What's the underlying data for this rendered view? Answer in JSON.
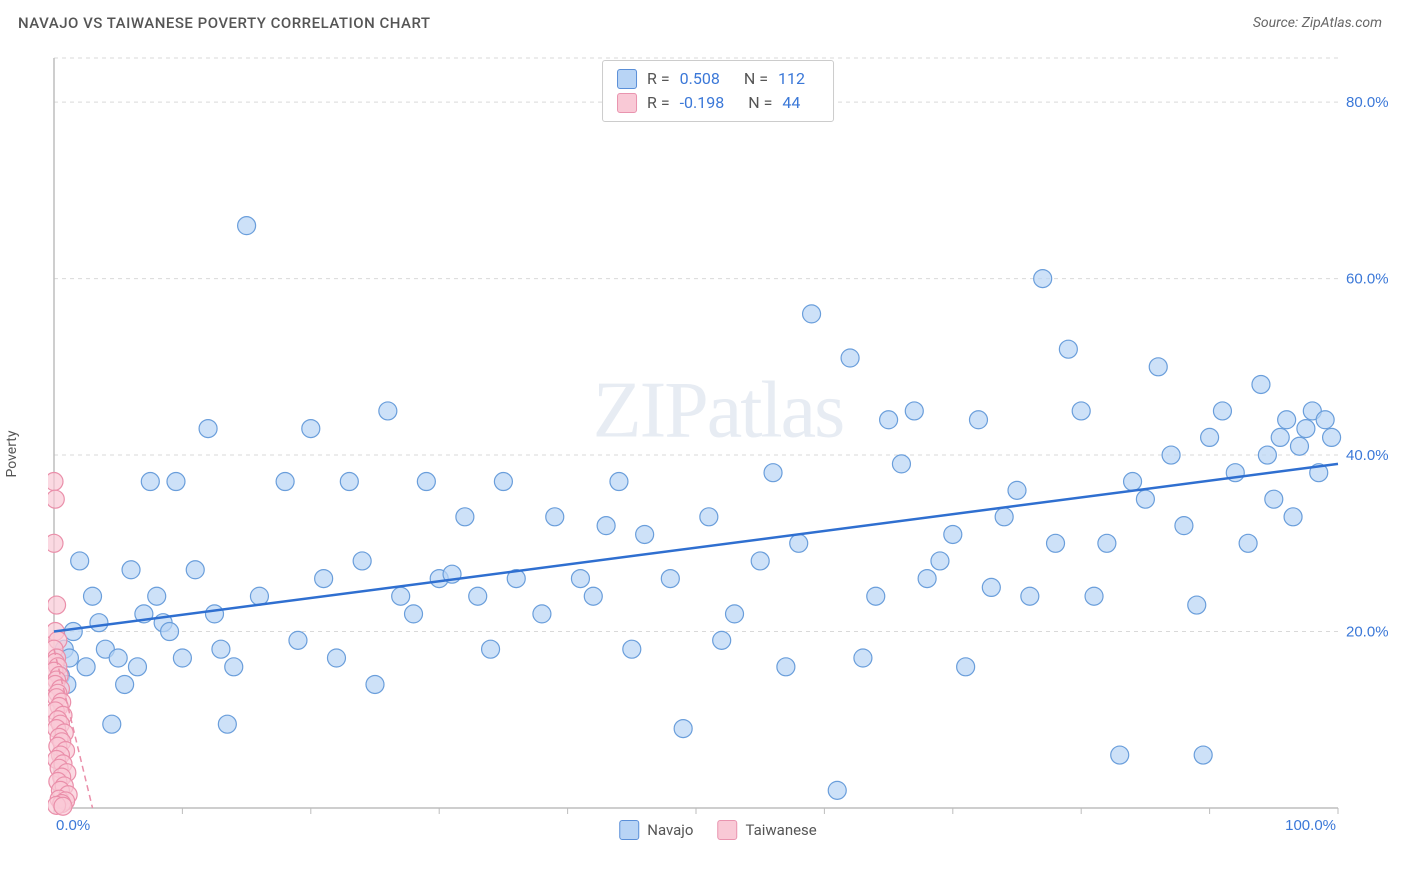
{
  "header": {
    "title": "NAVAJO VS TAIWANESE POVERTY CORRELATION CHART",
    "source": "Source: ZipAtlas.com"
  },
  "ylabel": "Poverty",
  "watermark": "ZIPatlas",
  "chart": {
    "type": "scatter",
    "xlim": [
      0,
      100
    ],
    "ylim": [
      0,
      85
    ],
    "x_ticks": [
      0,
      10,
      20,
      30,
      40,
      50,
      60,
      70,
      80,
      90,
      100
    ],
    "x_tick_labels": {
      "0": "0.0%",
      "100": "100.0%"
    },
    "y_gridlines": [
      20,
      40,
      60,
      80
    ],
    "y_tick_labels": {
      "20": "20.0%",
      "40": "40.0%",
      "60": "60.0%",
      "80": "80.0%"
    },
    "background_color": "#ffffff",
    "grid_color": "#d9d9d9",
    "axis_color": "#bdbdbd",
    "marker_radius": 9,
    "marker_stroke_width": 1.2,
    "series": [
      {
        "name": "Navajo",
        "label": "Navajo",
        "fill": "#b8d4f5",
        "stroke": "#6a9edb",
        "fill_opacity": 0.7,
        "R": "0.508",
        "N": "112",
        "trend": {
          "x1": 0,
          "y1": 20,
          "x2": 100,
          "y2": 39,
          "color": "#2f6fd0",
          "width": 2.5
        },
        "points": [
          [
            0.5,
            15
          ],
          [
            0.8,
            18
          ],
          [
            1,
            14
          ],
          [
            1.2,
            17
          ],
          [
            1.5,
            20
          ],
          [
            2,
            28
          ],
          [
            2.5,
            16
          ],
          [
            3,
            24
          ],
          [
            3.5,
            21
          ],
          [
            4,
            18
          ],
          [
            4.5,
            9.5
          ],
          [
            5,
            17
          ],
          [
            5.5,
            14
          ],
          [
            6,
            27
          ],
          [
            6.5,
            16
          ],
          [
            7,
            22
          ],
          [
            7.5,
            37
          ],
          [
            8,
            24
          ],
          [
            8.5,
            21
          ],
          [
            9,
            20
          ],
          [
            9.5,
            37
          ],
          [
            10,
            17
          ],
          [
            11,
            27
          ],
          [
            12,
            43
          ],
          [
            12.5,
            22
          ],
          [
            13,
            18
          ],
          [
            13.5,
            9.5
          ],
          [
            14,
            16
          ],
          [
            15,
            66
          ],
          [
            16,
            24
          ],
          [
            18,
            37
          ],
          [
            19,
            19
          ],
          [
            20,
            43
          ],
          [
            21,
            26
          ],
          [
            22,
            17
          ],
          [
            23,
            37
          ],
          [
            24,
            28
          ],
          [
            25,
            14
          ],
          [
            26,
            45
          ],
          [
            27,
            24
          ],
          [
            28,
            22
          ],
          [
            29,
            37
          ],
          [
            30,
            26
          ],
          [
            31,
            26.5
          ],
          [
            32,
            33
          ],
          [
            33,
            24
          ],
          [
            34,
            18
          ],
          [
            35,
            37
          ],
          [
            36,
            26
          ],
          [
            38,
            22
          ],
          [
            39,
            33
          ],
          [
            41,
            26
          ],
          [
            42,
            24
          ],
          [
            43,
            32
          ],
          [
            44,
            37
          ],
          [
            45,
            18
          ],
          [
            46,
            31
          ],
          [
            48,
            26
          ],
          [
            49,
            9
          ],
          [
            51,
            33
          ],
          [
            52,
            19
          ],
          [
            53,
            22
          ],
          [
            55,
            28
          ],
          [
            56,
            38
          ],
          [
            57,
            16
          ],
          [
            58,
            30
          ],
          [
            59,
            56
          ],
          [
            61,
            2
          ],
          [
            62,
            51
          ],
          [
            63,
            17
          ],
          [
            64,
            24
          ],
          [
            65,
            44
          ],
          [
            66,
            39
          ],
          [
            67,
            45
          ],
          [
            68,
            26
          ],
          [
            69,
            28
          ],
          [
            70,
            31
          ],
          [
            71,
            16
          ],
          [
            72,
            44
          ],
          [
            73,
            25
          ],
          [
            74,
            33
          ],
          [
            75,
            36
          ],
          [
            76,
            24
          ],
          [
            77,
            60
          ],
          [
            78,
            30
          ],
          [
            79,
            52
          ],
          [
            80,
            45
          ],
          [
            81,
            24
          ],
          [
            82,
            30
          ],
          [
            83,
            6
          ],
          [
            84,
            37
          ],
          [
            85,
            35
          ],
          [
            86,
            50
          ],
          [
            87,
            40
          ],
          [
            88,
            32
          ],
          [
            89,
            23
          ],
          [
            89.5,
            6
          ],
          [
            90,
            42
          ],
          [
            91,
            45
          ],
          [
            92,
            38
          ],
          [
            93,
            30
          ],
          [
            94,
            48
          ],
          [
            94.5,
            40
          ],
          [
            95,
            35
          ],
          [
            95.5,
            42
          ],
          [
            96,
            44
          ],
          [
            96.5,
            33
          ],
          [
            97,
            41
          ],
          [
            97.5,
            43
          ],
          [
            98,
            45
          ],
          [
            98.5,
            38
          ],
          [
            99,
            44
          ],
          [
            99.5,
            42
          ]
        ]
      },
      {
        "name": "Taiwanese",
        "label": "Taiwanese",
        "fill": "#f9c9d6",
        "stroke": "#ea8faa",
        "fill_opacity": 0.7,
        "R": "-0.198",
        "N": "44",
        "trend": {
          "x1": 0,
          "y1": 18,
          "x2": 3,
          "y2": 0,
          "color": "#ea8faa",
          "width": 1.5,
          "dashed": true
        },
        "points": [
          [
            0,
            37
          ],
          [
            0.1,
            35
          ],
          [
            0,
            30
          ],
          [
            0.2,
            23
          ],
          [
            0.1,
            20
          ],
          [
            0.3,
            19
          ],
          [
            0,
            18
          ],
          [
            0.2,
            17
          ],
          [
            0.1,
            16.5
          ],
          [
            0.3,
            16
          ],
          [
            0,
            15.5
          ],
          [
            0.4,
            15
          ],
          [
            0.2,
            14.5
          ],
          [
            0.1,
            14
          ],
          [
            0.5,
            13.5
          ],
          [
            0.3,
            13
          ],
          [
            0.2,
            12.5
          ],
          [
            0.6,
            12
          ],
          [
            0.4,
            11.5
          ],
          [
            0.1,
            11
          ],
          [
            0.7,
            10.5
          ],
          [
            0.3,
            10
          ],
          [
            0.5,
            9.5
          ],
          [
            0.2,
            9
          ],
          [
            0.8,
            8.5
          ],
          [
            0.4,
            8
          ],
          [
            0.6,
            7.5
          ],
          [
            0.3,
            7
          ],
          [
            0.9,
            6.5
          ],
          [
            0.5,
            6
          ],
          [
            0.2,
            5.5
          ],
          [
            0.7,
            5
          ],
          [
            0.4,
            4.5
          ],
          [
            1,
            4
          ],
          [
            0.6,
            3.5
          ],
          [
            0.3,
            3
          ],
          [
            0.8,
            2.5
          ],
          [
            0.5,
            2
          ],
          [
            1.1,
            1.5
          ],
          [
            0.4,
            1
          ],
          [
            0.9,
            0.8
          ],
          [
            0.6,
            0.5
          ],
          [
            0.2,
            0.3
          ],
          [
            0.7,
            0.2
          ]
        ]
      }
    ]
  },
  "stats_legend": {
    "rows": [
      {
        "series": "navajo",
        "R_label": "R =",
        "R": "0.508",
        "N_label": "N =",
        "N": "112"
      },
      {
        "series": "taiwanese",
        "R_label": "R =",
        "R": "-0.198",
        "N_label": "N =",
        "N": "44"
      }
    ]
  },
  "bottom_legend": {
    "items": [
      {
        "series": "navajo",
        "label": "Navajo"
      },
      {
        "series": "taiwanese",
        "label": "Taiwanese"
      }
    ]
  }
}
